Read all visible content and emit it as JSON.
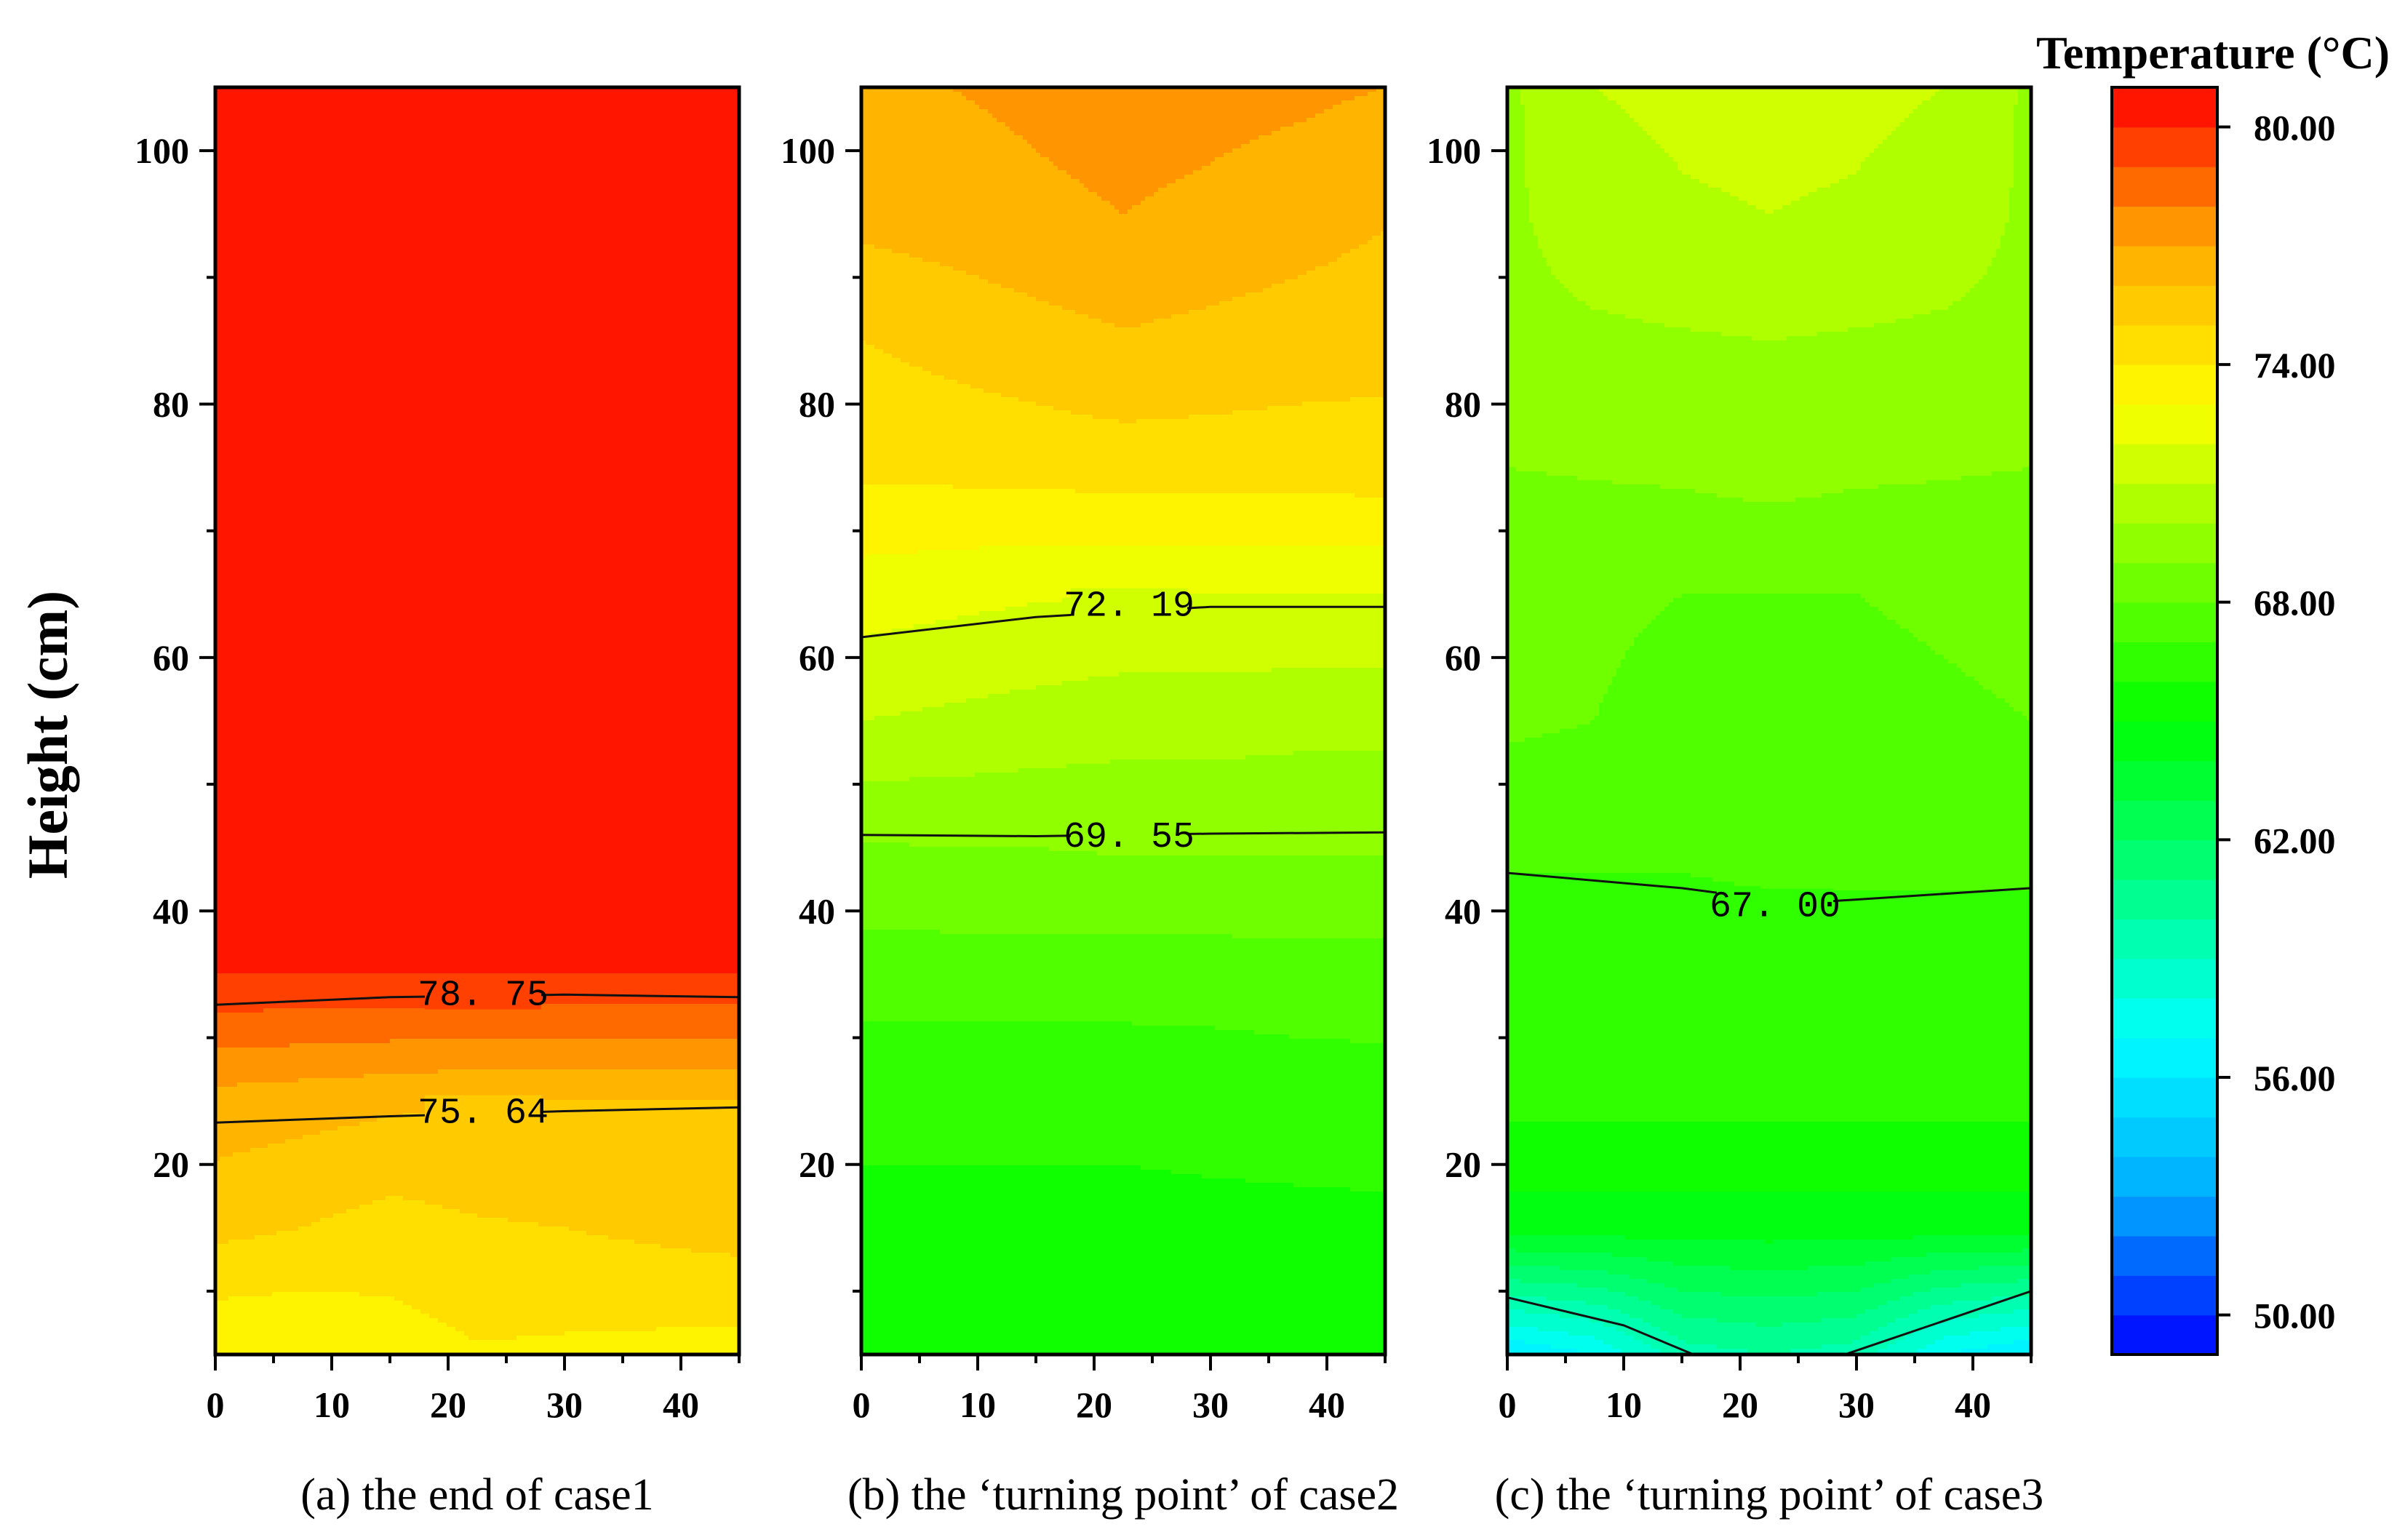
{
  "chart_data": {
    "type": "heatmap",
    "figure_title": "Temperature (°C)",
    "ylabel": "Height (cm)",
    "xlim": [
      0,
      45
    ],
    "ylim": [
      5,
      105
    ],
    "xticks": [
      0,
      10,
      20,
      30,
      40
    ],
    "yticks": [
      20,
      40,
      60,
      80,
      100
    ],
    "xgrid_cm": [
      0,
      7.5,
      15,
      22.5,
      30,
      37.5,
      45
    ],
    "ygrid_cm": [
      5,
      15,
      25,
      35,
      45,
      55,
      65,
      75,
      85,
      95,
      105
    ],
    "colorbar": {
      "min": 49,
      "max": 81,
      "levels": 32,
      "ticks": [
        50,
        56,
        62,
        68,
        74,
        80
      ],
      "tick_labels": [
        "50.00",
        "56.00",
        "62.00",
        "68.00",
        "74.00",
        "80.00"
      ],
      "colors": [
        "#0000ff",
        "#00aaff",
        "#00ffff",
        "#00ff80",
        "#00ff00",
        "#80ff00",
        "#ffff00",
        "#ffaa00",
        "#ff0000"
      ],
      "color_stops": [
        49,
        53,
        57,
        61,
        65,
        69,
        73,
        77,
        81
      ]
    },
    "panels": [
      {
        "caption": "(a) the end of case1",
        "contour_labels": [
          {
            "text": "78. 75",
            "x": 23,
            "y": 33.5
          },
          {
            "text": "75. 64",
            "x": 23,
            "y": 24.2
          }
        ],
        "contour_lines": [
          [
            [
              0,
              32.6
            ],
            [
              15,
              33.2
            ],
            [
              30,
              33.4
            ],
            [
              45,
              33.2
            ]
          ],
          [
            [
              0,
              23.3
            ],
            [
              15,
              23.8
            ],
            [
              30,
              24.2
            ],
            [
              45,
              24.5
            ]
          ]
        ],
        "grid": [
          [
            73.0,
            73.0,
            73.5,
            73.9,
            73.8,
            73.7,
            73.6
          ],
          [
            75.3,
            75.0,
            74.6,
            74.9,
            75.0,
            75.2,
            75.4
          ],
          [
            76.6,
            76.4,
            76.2,
            76.0,
            76.0,
            76.0,
            76.0
          ],
          [
            80.0,
            80.0,
            80.0,
            80.0,
            80.0,
            80.0,
            80.0
          ],
          [
            80.3,
            80.3,
            80.3,
            80.3,
            80.3,
            80.3,
            80.3
          ],
          [
            80.5,
            80.5,
            80.5,
            80.5,
            80.5,
            80.5,
            80.5
          ],
          [
            80.5,
            80.5,
            80.5,
            80.5,
            80.5,
            80.5,
            80.5
          ],
          [
            80.5,
            80.5,
            80.5,
            80.5,
            80.5,
            80.5,
            80.5
          ],
          [
            80.5,
            80.5,
            80.5,
            80.5,
            80.5,
            80.5,
            80.5
          ],
          [
            80.5,
            80.5,
            80.5,
            80.5,
            80.5,
            80.5,
            80.5
          ],
          [
            80.5,
            80.5,
            80.5,
            80.5,
            80.5,
            80.5,
            80.5
          ]
        ]
      },
      {
        "caption": "(b) the ‘turning point’ of case2",
        "contour_labels": [
          {
            "text": "72. 19",
            "x": 23,
            "y": 64.2
          },
          {
            "text": "69. 55",
            "x": 23,
            "y": 46
          }
        ],
        "contour_lines": [
          [
            [
              0,
              61.6
            ],
            [
              15,
              63.2
            ],
            [
              30,
              64.0
            ],
            [
              45,
              64.0
            ]
          ],
          [
            [
              0,
              46.0
            ],
            [
              15,
              45.9
            ],
            [
              30,
              46.1
            ],
            [
              45,
              46.2
            ]
          ]
        ],
        "grid": [
          [
            65.5,
            65.5,
            65.5,
            65.5,
            65.5,
            65.5,
            65.5
          ],
          [
            65.8,
            65.8,
            65.8,
            65.8,
            65.8,
            65.8,
            65.8
          ],
          [
            66.2,
            66.2,
            66.2,
            66.2,
            66.3,
            66.4,
            66.5
          ],
          [
            67.5,
            67.5,
            67.5,
            67.5,
            67.5,
            67.6,
            67.6
          ],
          [
            68.9,
            69.0,
            69.0,
            69.1,
            69.1,
            69.1,
            69.1
          ],
          [
            71.0,
            70.8,
            70.6,
            70.4,
            70.4,
            70.3,
            70.3
          ],
          [
            72.5,
            72.3,
            72.1,
            72.0,
            72.0,
            72.0,
            72.0
          ],
          [
            74.2,
            74.3,
            74.4,
            74.5,
            74.5,
            74.5,
            74.6
          ],
          [
            75.0,
            75.3,
            75.6,
            75.9,
            75.7,
            75.5,
            75.3
          ],
          [
            76.3,
            76.5,
            76.8,
            77.0,
            76.8,
            76.5,
            76.1
          ],
          [
            76.8,
            77.0,
            77.2,
            77.4,
            77.3,
            77.2,
            77.0
          ]
        ]
      },
      {
        "caption": "(c) the ‘turning point’ of case3",
        "contour_labels": [
          {
            "text": "67. 00",
            "x": 23,
            "y": 40.5
          }
        ],
        "contour_lines": [
          [
            [
              0,
              43.0
            ],
            [
              15,
              41.8
            ],
            [
              25,
              40.6
            ],
            [
              45,
              41.8
            ]
          ],
          [
            [
              0,
              9.5
            ],
            [
              10,
              7.3
            ],
            [
              16,
              5.0
            ]
          ],
          [
            [
              29,
              5.0
            ],
            [
              37,
              7.5
            ],
            [
              45,
              10.0
            ]
          ]
        ],
        "grid": [
          [
            56.0,
            57.0,
            59.5,
            60.0,
            59.5,
            57.0,
            56.0
          ],
          [
            64.5,
            64.5,
            64.5,
            64.5,
            64.5,
            64.5,
            64.5
          ],
          [
            66.3,
            66.3,
            66.3,
            66.3,
            66.3,
            66.3,
            66.3
          ],
          [
            66.6,
            66.6,
            66.6,
            66.6,
            66.6,
            66.6,
            66.6
          ],
          [
            67.1,
            67.1,
            67.1,
            67.2,
            67.2,
            67.2,
            67.2
          ],
          [
            68.2,
            68.0,
            67.8,
            67.8,
            67.8,
            67.9,
            68.0
          ],
          [
            68.2,
            68.1,
            68.0,
            68.0,
            68.0,
            68.1,
            68.2
          ],
          [
            69.0,
            69.1,
            69.2,
            69.4,
            69.2,
            69.1,
            69.0
          ],
          [
            69.7,
            69.8,
            69.9,
            70.0,
            69.9,
            69.8,
            69.7
          ],
          [
            69.8,
            70.6,
            70.9,
            71.0,
            70.9,
            70.6,
            69.8
          ],
          [
            69.8,
            71.0,
            71.2,
            71.3,
            71.2,
            71.0,
            69.8
          ]
        ]
      }
    ]
  }
}
